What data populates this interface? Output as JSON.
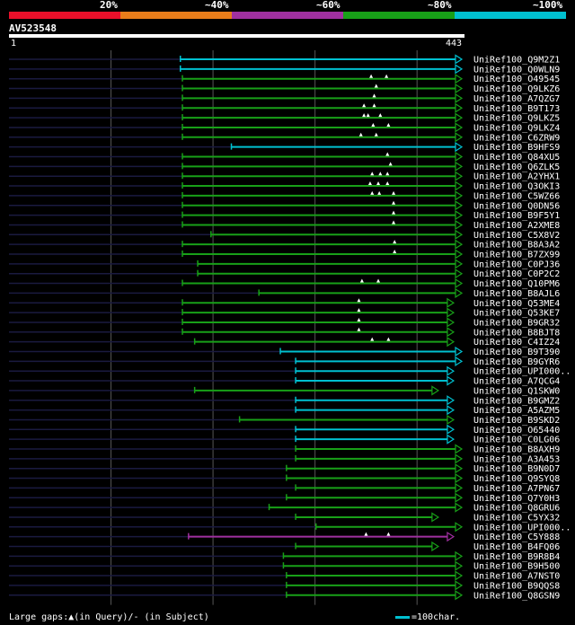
{
  "scale": {
    "segments": [
      {
        "label": "20%",
        "color": "#e8102a"
      },
      {
        "label": "~40%",
        "color": "#e87d1a"
      },
      {
        "label": "~60%",
        "color": "#a030a0"
      },
      {
        "label": "~80%",
        "color": "#18a018"
      },
      {
        "label": "~100%",
        "color": "#00c0d0"
      }
    ]
  },
  "query": {
    "id": "AV523548",
    "start": "1",
    "end": "443",
    "length": 443
  },
  "colors": {
    "c100": "#00c0d0",
    "c80": "#18a018",
    "c60": "#a030a0",
    "guide": "#1a1a40",
    "grid": "#555555",
    "gap": "#ffffff"
  },
  "hits": [
    {
      "name": "UniRef100_Q9M2Z1",
      "qstart": 168,
      "qend": 443,
      "cls": "c100",
      "gaps": []
    },
    {
      "name": "UniRef100_Q0WLN9",
      "qstart": 168,
      "qend": 443,
      "cls": "c100",
      "gaps": []
    },
    {
      "name": "UniRef100_O49545",
      "qstart": 170,
      "qend": 443,
      "cls": "c80",
      "gaps": [
        355,
        370
      ]
    },
    {
      "name": "UniRef100_Q9LKZ6",
      "qstart": 170,
      "qend": 443,
      "cls": "c80",
      "gaps": [
        360
      ]
    },
    {
      "name": "UniRef100_A7QZG7",
      "qstart": 170,
      "qend": 443,
      "cls": "c80",
      "gaps": [
        358
      ]
    },
    {
      "name": "UniRef100_B9T173",
      "qstart": 170,
      "qend": 443,
      "cls": "c80",
      "gaps": [
        348,
        358
      ]
    },
    {
      "name": "UniRef100_Q9LKZ5",
      "qstart": 170,
      "qend": 443,
      "cls": "c80",
      "gaps": [
        348,
        352,
        364
      ]
    },
    {
      "name": "UniRef100_Q9LKZ4",
      "qstart": 170,
      "qend": 443,
      "cls": "c80",
      "gaps": [
        357,
        372
      ]
    },
    {
      "name": "UniRef100_C6ZRW9",
      "qstart": 170,
      "qend": 443,
      "cls": "c80",
      "gaps": [
        345,
        360
      ]
    },
    {
      "name": "UniRef100_B9HFS9",
      "qstart": 218,
      "qend": 443,
      "cls": "c100",
      "gaps": []
    },
    {
      "name": "UniRef100_Q84XU5",
      "qstart": 170,
      "qend": 443,
      "cls": "c80",
      "gaps": [
        371
      ]
    },
    {
      "name": "UniRef100_Q6ZLK5",
      "qstart": 170,
      "qend": 443,
      "cls": "c80",
      "gaps": [
        374
      ]
    },
    {
      "name": "UniRef100_A2YHX1",
      "qstart": 170,
      "qend": 443,
      "cls": "c80",
      "gaps": [
        356,
        364,
        371
      ]
    },
    {
      "name": "UniRef100_Q3OKI3",
      "qstart": 170,
      "qend": 443,
      "cls": "c80",
      "gaps": [
        354,
        362,
        371
      ]
    },
    {
      "name": "UniRef100_C5WZ66",
      "qstart": 170,
      "qend": 443,
      "cls": "c80",
      "gaps": [
        356,
        363,
        377
      ]
    },
    {
      "name": "UniRef100_Q0DN56",
      "qstart": 170,
      "qend": 443,
      "cls": "c80",
      "gaps": [
        377
      ]
    },
    {
      "name": "UniRef100_B9F5Y1",
      "qstart": 170,
      "qend": 443,
      "cls": "c80",
      "gaps": [
        377
      ]
    },
    {
      "name": "UniRef100_A2XME8",
      "qstart": 170,
      "qend": 443,
      "cls": "c80",
      "gaps": [
        377
      ]
    },
    {
      "name": "UniRef100_C5X8V2",
      "qstart": 198,
      "qend": 443,
      "cls": "c80",
      "gaps": []
    },
    {
      "name": "UniRef100_B8A3A2",
      "qstart": 170,
      "qend": 443,
      "cls": "c80",
      "gaps": [
        378
      ]
    },
    {
      "name": "UniRef100_B7ZX99",
      "qstart": 170,
      "qend": 443,
      "cls": "c80",
      "gaps": [
        378
      ]
    },
    {
      "name": "UniRef100_C0PJ36",
      "qstart": 185,
      "qend": 443,
      "cls": "c80",
      "gaps": []
    },
    {
      "name": "UniRef100_C0P2C2",
      "qstart": 185,
      "qend": 443,
      "cls": "c80",
      "gaps": []
    },
    {
      "name": "UniRef100_Q10PM6",
      "qstart": 170,
      "qend": 443,
      "cls": "c80",
      "gaps": [
        346,
        362
      ]
    },
    {
      "name": "UniRef100_B8AJL6",
      "qstart": 245,
      "qend": 443,
      "cls": "c80",
      "gaps": []
    },
    {
      "name": "UniRef100_Q53ME4",
      "qstart": 170,
      "qend": 435,
      "cls": "c80",
      "gaps": [
        343
      ]
    },
    {
      "name": "UniRef100_Q53KE7",
      "qstart": 170,
      "qend": 435,
      "cls": "c80",
      "gaps": [
        343
      ]
    },
    {
      "name": "UniRef100_B9GR32",
      "qstart": 170,
      "qend": 435,
      "cls": "c80",
      "gaps": [
        343
      ]
    },
    {
      "name": "UniRef100_B8BJT8",
      "qstart": 170,
      "qend": 435,
      "cls": "c80",
      "gaps": [
        343
      ]
    },
    {
      "name": "UniRef100_C4IZ24",
      "qstart": 182,
      "qend": 435,
      "cls": "c80",
      "gaps": [
        356,
        372
      ]
    },
    {
      "name": "UniRef100_B9T390",
      "qstart": 266,
      "qend": 443,
      "cls": "c100",
      "gaps": []
    },
    {
      "name": "UniRef100_B9GYR6",
      "qstart": 281,
      "qend": 443,
      "cls": "c100",
      "gaps": []
    },
    {
      "name": "UniRef100_UPI000..",
      "qstart": 281,
      "qend": 435,
      "cls": "c100",
      "gaps": []
    },
    {
      "name": "UniRef100_A7QCG4",
      "qstart": 281,
      "qend": 435,
      "cls": "c100",
      "gaps": []
    },
    {
      "name": "UniRef100_Q1SKW0",
      "qstart": 182,
      "qend": 420,
      "cls": "c80",
      "gaps": []
    },
    {
      "name": "UniRef100_B9GMZ2",
      "qstart": 281,
      "qend": 435,
      "cls": "c100",
      "gaps": []
    },
    {
      "name": "UniRef100_A5AZM5",
      "qstart": 281,
      "qend": 435,
      "cls": "c100",
      "gaps": []
    },
    {
      "name": "UniRef100_B9SKD2",
      "qstart": 226,
      "qend": 435,
      "cls": "c80",
      "gaps": []
    },
    {
      "name": "UniRef100_O65440",
      "qstart": 281,
      "qend": 435,
      "cls": "c100",
      "gaps": []
    },
    {
      "name": "UniRef100_C0LG06",
      "qstart": 281,
      "qend": 435,
      "cls": "c100",
      "gaps": []
    },
    {
      "name": "UniRef100_B8AXH9",
      "qstart": 281,
      "qend": 443,
      "cls": "c80",
      "gaps": []
    },
    {
      "name": "UniRef100_A3A453",
      "qstart": 281,
      "qend": 443,
      "cls": "c80",
      "gaps": []
    },
    {
      "name": "UniRef100_B9N0D7",
      "qstart": 272,
      "qend": 443,
      "cls": "c80",
      "gaps": []
    },
    {
      "name": "UniRef100_Q9SYQ8",
      "qstart": 272,
      "qend": 443,
      "cls": "c80",
      "gaps": []
    },
    {
      "name": "UniRef100_A7PN67",
      "qstart": 281,
      "qend": 443,
      "cls": "c80",
      "gaps": []
    },
    {
      "name": "UniRef100_Q7Y0H3",
      "qstart": 272,
      "qend": 443,
      "cls": "c80",
      "gaps": []
    },
    {
      "name": "UniRef100_Q8GRU6",
      "qstart": 255,
      "qend": 443,
      "cls": "c80",
      "gaps": []
    },
    {
      "name": "UniRef100_C5YX32",
      "qstart": 281,
      "qend": 420,
      "cls": "c80",
      "gaps": []
    },
    {
      "name": "UniRef100_UPI000..",
      "qstart": 301,
      "qend": 443,
      "cls": "c80",
      "gaps": []
    },
    {
      "name": "UniRef100_C5Y888",
      "qstart": 176,
      "qend": 435,
      "cls": "c60",
      "gaps": [
        350,
        372
      ]
    },
    {
      "name": "UniRef100_B4FQ06",
      "qstart": 281,
      "qend": 420,
      "cls": "c80",
      "gaps": []
    },
    {
      "name": "UniRef100_B9R8B4",
      "qstart": 269,
      "qend": 443,
      "cls": "c80",
      "gaps": []
    },
    {
      "name": "UniRef100_B9H500",
      "qstart": 269,
      "qend": 443,
      "cls": "c80",
      "gaps": []
    },
    {
      "name": "UniRef100_A7NST0",
      "qstart": 272,
      "qend": 443,
      "cls": "c80",
      "gaps": []
    },
    {
      "name": "UniRef100_B9QQS8",
      "qstart": 272,
      "qend": 443,
      "cls": "c80",
      "gaps": []
    },
    {
      "name": "UniRef100_Q8GSN9",
      "qstart": 272,
      "qend": 443,
      "cls": "c80",
      "gaps": []
    }
  ],
  "legend": {
    "left_text": "Large gaps:▲(in Query)/‐ (in Subject)",
    "right_text": "=100char."
  }
}
